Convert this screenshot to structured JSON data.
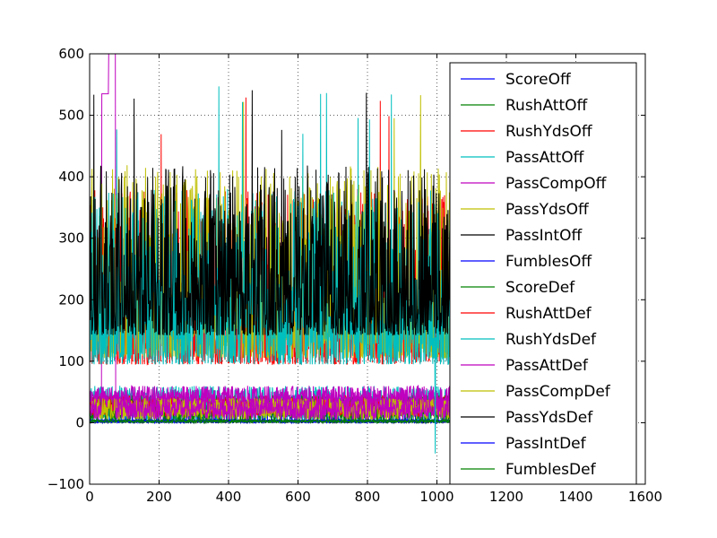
{
  "chart_data": {
    "type": "line",
    "title": "",
    "xlabel": "",
    "ylabel": "",
    "xlim": [
      0,
      1600
    ],
    "ylim": [
      -100,
      600
    ],
    "xticks": [
      0,
      200,
      400,
      600,
      800,
      1000,
      1200,
      1400,
      1600
    ],
    "yticks": [
      -100,
      0,
      100,
      200,
      300,
      400,
      500,
      600
    ],
    "grid": true,
    "legend_position": "right",
    "n_points": 1045,
    "series": [
      {
        "name": "ScoreOff",
        "color": "#0000ff",
        "typical_range": [
          0,
          45
        ]
      },
      {
        "name": "RushAttOff",
        "color": "#008000",
        "typical_range": [
          10,
          45
        ]
      },
      {
        "name": "RushYdsOff",
        "color": "#ff0000",
        "typical_range": [
          0,
          380
        ],
        "peak": 550
      },
      {
        "name": "PassAttOff",
        "color": "#00bfbf",
        "typical_range": [
          0,
          60
        ]
      },
      {
        "name": "PassCompOff",
        "color": "#bf00bf",
        "typical_range": [
          5,
          40
        ],
        "peak": 600
      },
      {
        "name": "PassYdsOff",
        "color": "#bfbf00",
        "typical_range": [
          0,
          420
        ],
        "peak": 555
      },
      {
        "name": "PassIntOff",
        "color": "#000000",
        "typical_range": [
          0,
          5
        ]
      },
      {
        "name": "FumblesOff",
        "color": "#0000ff",
        "typical_range": [
          0,
          5
        ]
      },
      {
        "name": "ScoreDef",
        "color": "#008000",
        "typical_range": [
          0,
          45
        ]
      },
      {
        "name": "RushAttDef",
        "color": "#ff0000",
        "typical_range": [
          10,
          45
        ]
      },
      {
        "name": "RushYdsDef",
        "color": "#00bfbf",
        "typical_range": [
          0,
          380
        ],
        "peak": 550,
        "min": -50
      },
      {
        "name": "PassAttDef",
        "color": "#bf00bf",
        "typical_range": [
          20,
          60
        ]
      },
      {
        "name": "PassCompDef",
        "color": "#bfbf00",
        "typical_range": [
          5,
          40
        ]
      },
      {
        "name": "PassYdsDef",
        "color": "#000000",
        "typical_range": [
          50,
          420
        ],
        "peak": 558
      },
      {
        "name": "PassIntDef",
        "color": "#0000ff",
        "typical_range": [
          0,
          5
        ]
      },
      {
        "name": "FumblesDef",
        "color": "#008000",
        "typical_range": [
          0,
          5
        ]
      }
    ]
  }
}
